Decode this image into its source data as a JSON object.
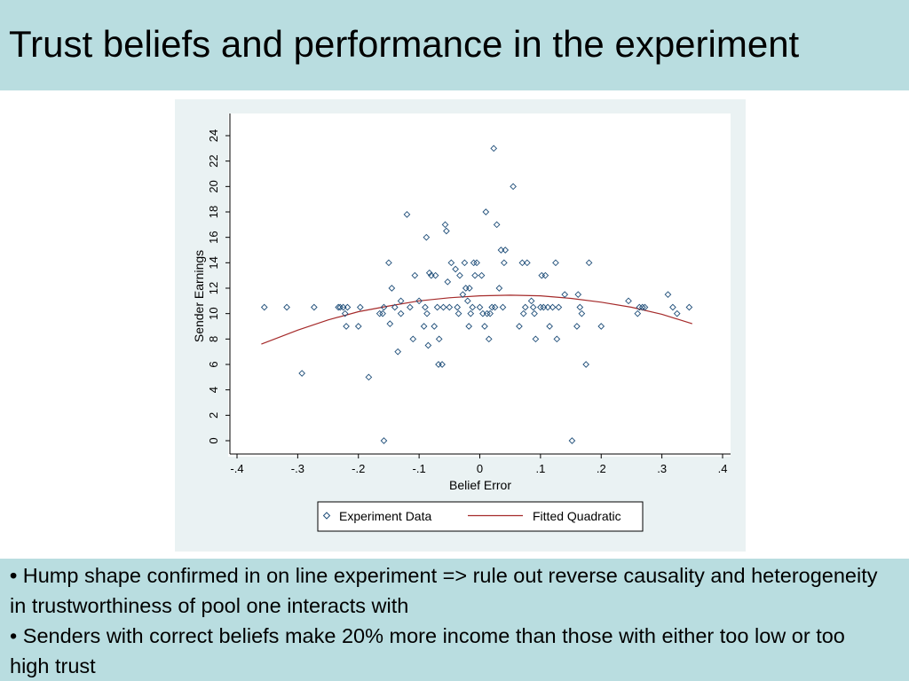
{
  "slide": {
    "title": "Trust beliefs and performance in the experiment"
  },
  "bullets": [
    {
      "marker": "•",
      "text": " Hump  shape confirmed in on line experiment => rule out reverse causality and heterogeneity in trustworthiness of pool one interacts with"
    },
    {
      "marker": "•",
      "text": " Senders with correct beliefs make 20% more income than those with either too low or too high trust"
    }
  ],
  "colors": {
    "band": "#b9dde0",
    "panel": "#eaf2f3",
    "marker": "#1f4e79",
    "fit_line": "#a52a2a"
  },
  "chart_data": {
    "type": "scatter",
    "xlabel": "Belief Error",
    "ylabel": "Sender Earnings",
    "xlim": [
      -0.4,
      0.4
    ],
    "ylim": [
      0,
      24
    ],
    "xticks": [
      -0.4,
      -0.3,
      -0.2,
      -0.1,
      0,
      0.1,
      0.2,
      0.3,
      0.4
    ],
    "xtick_labels": [
      "-.4",
      "-.3",
      "-.2",
      "-.1",
      "0",
      ".1",
      ".2",
      ".3",
      ".4"
    ],
    "yticks": [
      0,
      2,
      4,
      6,
      8,
      10,
      12,
      14,
      16,
      18,
      20,
      22,
      24
    ],
    "ytick_labels": [
      "0",
      "2",
      "4",
      "6",
      "8",
      "10",
      "12",
      "14",
      "16",
      "18",
      "20",
      "22",
      "24"
    ],
    "grid": false,
    "legend": {
      "placement": "bottom",
      "entries": [
        "Experiment Data",
        "Fitted Quadratic"
      ]
    },
    "series": [
      {
        "name": "Experiment Data",
        "type": "scatter",
        "marker": "diamond-open",
        "points": [
          [
            -0.355,
            10.5
          ],
          [
            -0.318,
            10.5
          ],
          [
            -0.293,
            5.3
          ],
          [
            -0.273,
            10.5
          ],
          [
            -0.233,
            10.5
          ],
          [
            -0.23,
            10.5
          ],
          [
            -0.225,
            10.5
          ],
          [
            -0.222,
            10.0
          ],
          [
            -0.22,
            9.0
          ],
          [
            -0.218,
            10.5
          ],
          [
            -0.2,
            9.0
          ],
          [
            -0.197,
            10.5
          ],
          [
            -0.183,
            5.0
          ],
          [
            -0.165,
            10.0
          ],
          [
            -0.16,
            10.0
          ],
          [
            -0.158,
            10.5
          ],
          [
            -0.158,
            0.0
          ],
          [
            -0.15,
            14.0
          ],
          [
            -0.148,
            9.2
          ],
          [
            -0.145,
            12.0
          ],
          [
            -0.14,
            10.5
          ],
          [
            -0.135,
            7.0
          ],
          [
            -0.13,
            11.0
          ],
          [
            -0.13,
            10.0
          ],
          [
            -0.12,
            17.8
          ],
          [
            -0.115,
            10.5
          ],
          [
            -0.11,
            8.0
          ],
          [
            -0.107,
            13.0
          ],
          [
            -0.1,
            11.0
          ],
          [
            -0.092,
            9.0
          ],
          [
            -0.09,
            10.5
          ],
          [
            -0.088,
            16.0
          ],
          [
            -0.087,
            10.0
          ],
          [
            -0.085,
            7.5
          ],
          [
            -0.083,
            13.2
          ],
          [
            -0.08,
            13.0
          ],
          [
            -0.075,
            9.0
          ],
          [
            -0.073,
            13.0
          ],
          [
            -0.07,
            10.5
          ],
          [
            -0.068,
            6.0
          ],
          [
            -0.067,
            8.0
          ],
          [
            -0.062,
            6.0
          ],
          [
            -0.06,
            10.5
          ],
          [
            -0.057,
            17.0
          ],
          [
            -0.055,
            16.5
          ],
          [
            -0.053,
            12.5
          ],
          [
            -0.05,
            10.5
          ],
          [
            -0.047,
            14.0
          ],
          [
            -0.04,
            13.5
          ],
          [
            -0.037,
            10.5
          ],
          [
            -0.035,
            10.0
          ],
          [
            -0.033,
            13.0
          ],
          [
            -0.028,
            11.5
          ],
          [
            -0.025,
            14.0
          ],
          [
            -0.023,
            12.0
          ],
          [
            -0.02,
            11.0
          ],
          [
            -0.018,
            9.0
          ],
          [
            -0.017,
            12.0
          ],
          [
            -0.015,
            10.0
          ],
          [
            -0.012,
            10.5
          ],
          [
            -0.01,
            14.0
          ],
          [
            -0.008,
            13.0
          ],
          [
            -0.005,
            14.0
          ],
          [
            0.0,
            10.5
          ],
          [
            0.003,
            13.0
          ],
          [
            0.005,
            10.0
          ],
          [
            0.008,
            9.0
          ],
          [
            0.01,
            18.0
          ],
          [
            0.012,
            10.0
          ],
          [
            0.015,
            8.0
          ],
          [
            0.017,
            10.0
          ],
          [
            0.02,
            10.5
          ],
          [
            0.023,
            23.0
          ],
          [
            0.025,
            10.5
          ],
          [
            0.028,
            17.0
          ],
          [
            0.032,
            12.0
          ],
          [
            0.035,
            15.0
          ],
          [
            0.038,
            10.5
          ],
          [
            0.04,
            14.0
          ],
          [
            0.042,
            15.0
          ],
          [
            0.055,
            20.0
          ],
          [
            0.065,
            9.0
          ],
          [
            0.07,
            14.0
          ],
          [
            0.072,
            10.0
          ],
          [
            0.075,
            10.5
          ],
          [
            0.078,
            14.0
          ],
          [
            0.085,
            11.0
          ],
          [
            0.088,
            10.5
          ],
          [
            0.09,
            10.0
          ],
          [
            0.092,
            8.0
          ],
          [
            0.1,
            10.5
          ],
          [
            0.102,
            13.0
          ],
          [
            0.105,
            10.5
          ],
          [
            0.108,
            13.0
          ],
          [
            0.112,
            10.5
          ],
          [
            0.115,
            9.0
          ],
          [
            0.12,
            10.5
          ],
          [
            0.125,
            14.0
          ],
          [
            0.127,
            8.0
          ],
          [
            0.13,
            10.5
          ],
          [
            0.14,
            11.5
          ],
          [
            0.152,
            0.0
          ],
          [
            0.16,
            9.0
          ],
          [
            0.162,
            11.5
          ],
          [
            0.165,
            10.5
          ],
          [
            0.168,
            10.0
          ],
          [
            0.175,
            6.0
          ],
          [
            0.18,
            14.0
          ],
          [
            0.2,
            9.0
          ],
          [
            0.245,
            11.0
          ],
          [
            0.26,
            10.0
          ],
          [
            0.263,
            10.5
          ],
          [
            0.268,
            10.5
          ],
          [
            0.272,
            10.5
          ],
          [
            0.31,
            11.5
          ],
          [
            0.318,
            10.5
          ],
          [
            0.325,
            10.0
          ],
          [
            0.345,
            10.5
          ]
        ]
      },
      {
        "name": "Fitted Quadratic",
        "type": "line",
        "points": [
          [
            -0.36,
            7.6
          ],
          [
            -0.3,
            8.7
          ],
          [
            -0.25,
            9.5
          ],
          [
            -0.2,
            10.15
          ],
          [
            -0.15,
            10.6
          ],
          [
            -0.1,
            11.0
          ],
          [
            -0.05,
            11.25
          ],
          [
            0.0,
            11.4
          ],
          [
            0.05,
            11.45
          ],
          [
            0.1,
            11.4
          ],
          [
            0.15,
            11.2
          ],
          [
            0.2,
            10.9
          ],
          [
            0.25,
            10.5
          ],
          [
            0.3,
            9.95
          ],
          [
            0.35,
            9.2
          ]
        ]
      }
    ]
  }
}
